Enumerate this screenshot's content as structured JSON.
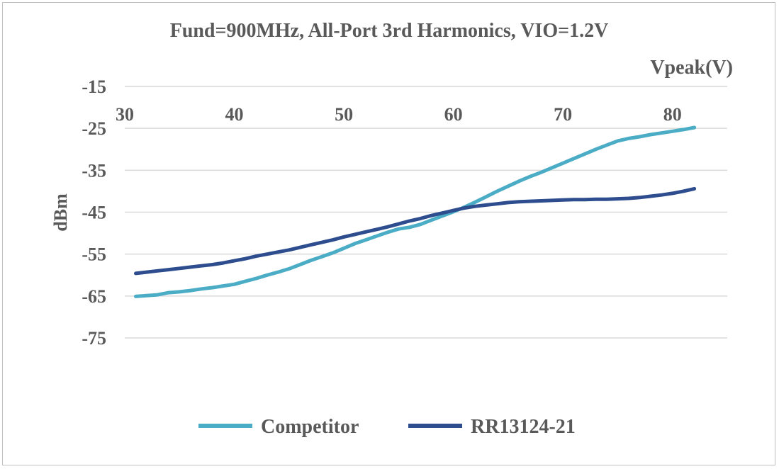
{
  "chart_data": {
    "type": "line",
    "title": "Fund=900MHz, All-Port 3rd Harmonics, VIO=1.2V",
    "xlabel": "Vpeak(V)",
    "ylabel": "dBm",
    "xlim": [
      30,
      85
    ],
    "ylim": [
      -75,
      -15
    ],
    "x_ticks": [
      30,
      40,
      50,
      60,
      70,
      80
    ],
    "y_ticks": [
      -15,
      -25,
      -35,
      -45,
      -55,
      -65,
      -75
    ],
    "grid": "horizontal",
    "legend_position": "bottom",
    "series": [
      {
        "name": "Competitor",
        "color": "#4bacc6",
        "x": [
          31,
          32,
          33,
          34,
          35,
          36,
          37,
          38,
          39,
          40,
          41,
          42,
          43,
          44,
          45,
          46,
          47,
          48,
          49,
          50,
          51,
          52,
          53,
          54,
          55,
          56,
          57,
          58,
          59,
          60,
          61,
          62,
          63,
          64,
          65,
          66,
          67,
          68,
          69,
          70,
          71,
          72,
          73,
          74,
          75,
          76,
          77,
          78,
          79,
          80,
          81,
          82
        ],
        "y": [
          -65.1,
          -64.9,
          -64.7,
          -64.2,
          -64.0,
          -63.7,
          -63.3,
          -63.0,
          -62.6,
          -62.2,
          -61.5,
          -60.8,
          -60.0,
          -59.3,
          -58.5,
          -57.5,
          -56.5,
          -55.6,
          -54.7,
          -53.6,
          -52.5,
          -51.6,
          -50.7,
          -49.8,
          -49.0,
          -48.6,
          -47.9,
          -46.9,
          -45.9,
          -44.9,
          -43.8,
          -42.6,
          -41.3,
          -40.0,
          -38.8,
          -37.6,
          -36.5,
          -35.5,
          -34.4,
          -33.3,
          -32.2,
          -31.1,
          -30.0,
          -29.0,
          -28.0,
          -27.4,
          -27.0,
          -26.5,
          -26.1,
          -25.7,
          -25.3,
          -24.8
        ]
      },
      {
        "name": "RR13124-21",
        "color": "#2e4d8e",
        "x": [
          31,
          32,
          33,
          34,
          35,
          36,
          37,
          38,
          39,
          40,
          41,
          42,
          43,
          44,
          45,
          46,
          47,
          48,
          49,
          50,
          51,
          52,
          53,
          54,
          55,
          56,
          57,
          58,
          59,
          60,
          61,
          62,
          63,
          64,
          65,
          66,
          67,
          68,
          69,
          70,
          71,
          72,
          73,
          74,
          75,
          76,
          77,
          78,
          79,
          80,
          81,
          82
        ],
        "y": [
          -59.6,
          -59.3,
          -59.0,
          -58.7,
          -58.4,
          -58.1,
          -57.8,
          -57.5,
          -57.1,
          -56.6,
          -56.1,
          -55.5,
          -55.0,
          -54.5,
          -54.0,
          -53.4,
          -52.8,
          -52.2,
          -51.6,
          -50.9,
          -50.3,
          -49.7,
          -49.1,
          -48.5,
          -47.8,
          -47.1,
          -46.5,
          -45.8,
          -45.2,
          -44.6,
          -44.0,
          -43.6,
          -43.3,
          -43.0,
          -42.7,
          -42.5,
          -42.4,
          -42.3,
          -42.2,
          -42.1,
          -42.0,
          -42.0,
          -41.9,
          -41.9,
          -41.8,
          -41.7,
          -41.5,
          -41.2,
          -40.9,
          -40.5,
          -40.0,
          -39.4
        ]
      }
    ]
  }
}
